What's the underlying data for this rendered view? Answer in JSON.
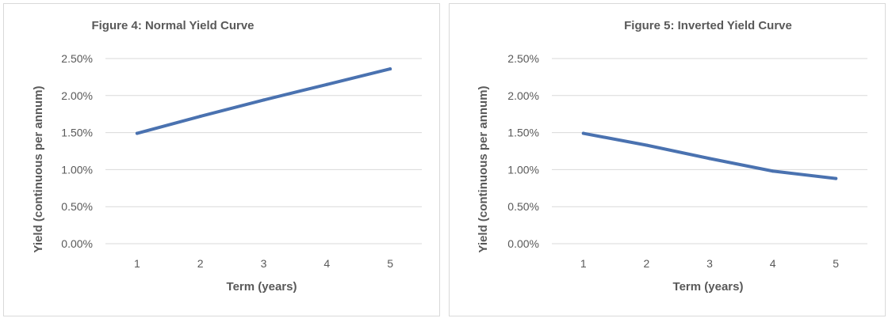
{
  "colors": {
    "series": "#4a72b0",
    "grid": "#d9d9d9",
    "text": "#595959"
  },
  "chart_data": [
    {
      "type": "line",
      "title": "Figure 4: Normal Yield Curve",
      "xlabel": "Term (years)",
      "ylabel": "Yield (continuous per annum)",
      "categories": [
        "1",
        "2",
        "3",
        "4",
        "5"
      ],
      "ylim": [
        0,
        0.025
      ],
      "yticks": [
        "0.00%",
        "0.50%",
        "1.00%",
        "1.50%",
        "2.00%",
        "2.50%"
      ],
      "grid": true,
      "series": [
        {
          "values": [
            0.0149,
            0.0172,
            0.0194,
            0.0215,
            0.0236
          ]
        }
      ]
    },
    {
      "type": "line",
      "title": "Figure 5: Inverted Yield Curve",
      "xlabel": "Term (years)",
      "ylabel": "Yield (continuous per annum)",
      "categories": [
        "1",
        "2",
        "3",
        "4",
        "5"
      ],
      "ylim": [
        0,
        0.025
      ],
      "yticks": [
        "0.00%",
        "0.50%",
        "1.00%",
        "1.50%",
        "2.00%",
        "2.50%"
      ],
      "grid": true,
      "series": [
        {
          "values": [
            0.0149,
            0.0133,
            0.0115,
            0.0098,
            0.0088
          ]
        }
      ]
    }
  ]
}
